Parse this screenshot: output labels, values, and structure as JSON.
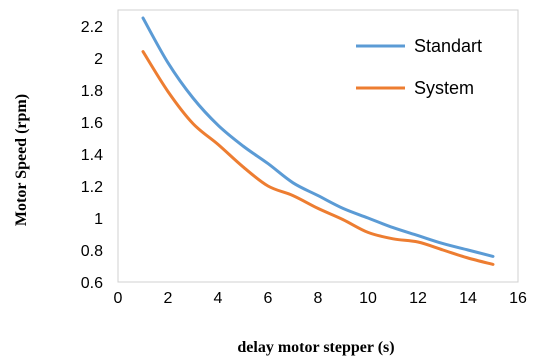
{
  "chart_data": {
    "type": "line",
    "title": "",
    "xlabel": "delay motor stepper (s)",
    "ylabel": "Motor Speed (rpm)",
    "xlim": [
      0,
      16
    ],
    "ylim": [
      0.6,
      2.3
    ],
    "xticks": [
      "0",
      "2",
      "4",
      "6",
      "8",
      "10",
      "12",
      "14",
      "16"
    ],
    "yticks": [
      "0.6",
      "0.8",
      "1",
      "1.2",
      "1.4",
      "1.6",
      "1.8",
      "2",
      "2.2"
    ],
    "grid": false,
    "legend_position": "top-right",
    "series": [
      {
        "name": "Standart",
        "color": "#5B9BD5",
        "x": [
          1,
          2,
          3,
          4,
          5,
          6,
          7,
          8,
          9,
          10,
          11,
          12,
          13,
          14,
          15
        ],
        "y": [
          2.25,
          1.97,
          1.75,
          1.58,
          1.45,
          1.34,
          1.22,
          1.14,
          1.06,
          1.0,
          0.94,
          0.89,
          0.84,
          0.8,
          0.76
        ]
      },
      {
        "name": "System",
        "color": "#ED7D31",
        "x": [
          1,
          2,
          3,
          4,
          5,
          6,
          7,
          8,
          9,
          10,
          11,
          12,
          13,
          14,
          15
        ],
        "y": [
          2.04,
          1.79,
          1.59,
          1.46,
          1.32,
          1.2,
          1.14,
          1.06,
          0.99,
          0.91,
          0.87,
          0.85,
          0.8,
          0.75,
          0.71
        ]
      }
    ]
  }
}
